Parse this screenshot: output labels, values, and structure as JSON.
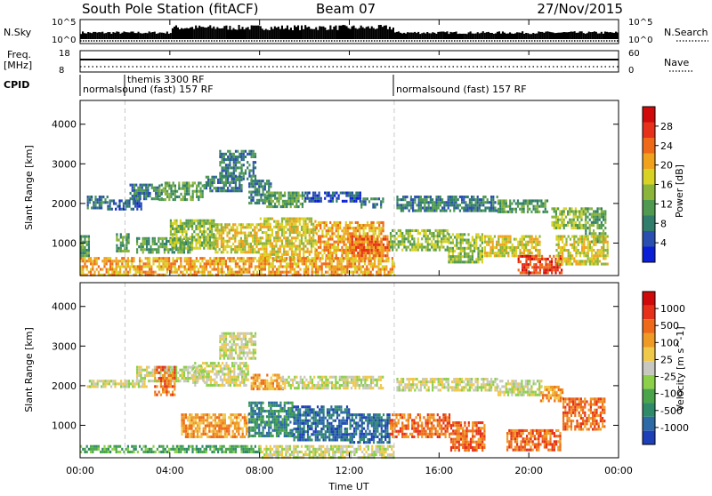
{
  "header": {
    "station": "South Pole Station (fitACF)",
    "beam": "Beam 07",
    "date": "27/Nov/2015"
  },
  "top_panels": {
    "nsky_label": "N.Sky",
    "nsky_ticks": [
      "10^5",
      "10^0"
    ],
    "nsearch_label": "N.Search",
    "nsearch_ticks": [
      "10^5",
      "10^0"
    ],
    "freq_label": "Freq.",
    "freq_unit": "[MHz]",
    "freq_ticks": [
      "18",
      "8"
    ],
    "nave_label": "Nave",
    "nave_ticks": [
      "60",
      "0"
    ],
    "cpid_label": "CPID",
    "cpid_segments": [
      {
        "label": "normalsound (fast) 157 RF",
        "start_hour": 0,
        "end_hour": 14
      },
      {
        "label": "themis 3300 RF",
        "start_hour": 2,
        "end_hour": 2
      },
      {
        "label": "normalsound (fast) 157 RF",
        "start_hour": 14,
        "end_hour": 24
      }
    ]
  },
  "chart_data": [
    {
      "type": "heatmap",
      "panel": "power",
      "ylabel": "Slant Range [km]",
      "yticks": [
        1000,
        2000,
        3000,
        4000
      ],
      "ylim": [
        180,
        4600
      ],
      "xlim_hours": [
        0,
        24
      ],
      "colorbar": {
        "label": "Power [dB]",
        "ticks": [
          "4",
          "8",
          "12",
          "16",
          "20",
          "24",
          "28"
        ],
        "colors": [
          "#0b1fd6",
          "#2a4fb0",
          "#2f7d6a",
          "#4f9a50",
          "#8ab43a",
          "#d8d224",
          "#f0a21c",
          "#ee6a18",
          "#e6301a",
          "#d00a0a"
        ]
      },
      "regions": [
        {
          "x0": 0.3,
          "x1": 1.2,
          "y0": 1900,
          "y1": 2200,
          "level": 2
        },
        {
          "x0": 1.2,
          "x1": 2.7,
          "y0": 1850,
          "y1": 2100,
          "level": 1
        },
        {
          "x0": 2.2,
          "x1": 3.6,
          "y0": 2150,
          "y1": 2500,
          "level": 2
        },
        {
          "x0": 3.5,
          "x1": 5.5,
          "y0": 2100,
          "y1": 2550,
          "level": 3
        },
        {
          "x0": 5.5,
          "x1": 7.2,
          "y0": 2300,
          "y1": 2700,
          "level": 2
        },
        {
          "x0": 6.2,
          "x1": 7.8,
          "y0": 2600,
          "y1": 3350,
          "level": 2
        },
        {
          "x0": 7.5,
          "x1": 8.5,
          "y0": 2000,
          "y1": 2600,
          "level": 2
        },
        {
          "x0": 8.3,
          "x1": 10.0,
          "y0": 1900,
          "y1": 2300,
          "level": 3
        },
        {
          "x0": 10.0,
          "x1": 12.5,
          "y0": 2050,
          "y1": 2300,
          "level": 1
        },
        {
          "x0": 12.5,
          "x1": 13.5,
          "y0": 1900,
          "y1": 2150,
          "level": 2
        },
        {
          "x0": 14.1,
          "x1": 18.6,
          "y0": 1850,
          "y1": 2200,
          "level": 2
        },
        {
          "x0": 18.6,
          "x1": 20.8,
          "y0": 1800,
          "y1": 2100,
          "level": 3
        },
        {
          "x0": 21.0,
          "x1": 22.5,
          "y0": 1350,
          "y1": 1900,
          "level": 4
        },
        {
          "x0": 22.5,
          "x1": 23.4,
          "y0": 1000,
          "y1": 1900,
          "level": 3
        },
        {
          "x0": 0.0,
          "x1": 0.4,
          "y0": 700,
          "y1": 1200,
          "level": 3
        },
        {
          "x0": 1.6,
          "x1": 2.2,
          "y0": 800,
          "y1": 1250,
          "level": 3
        },
        {
          "x0": 2.5,
          "x1": 5.0,
          "y0": 750,
          "y1": 1150,
          "level": 3
        },
        {
          "x0": 4.0,
          "x1": 6.0,
          "y0": 900,
          "y1": 1600,
          "level": 4
        },
        {
          "x0": 6.0,
          "x1": 8.0,
          "y0": 800,
          "y1": 1500,
          "level": 5
        },
        {
          "x0": 8.0,
          "x1": 10.5,
          "y0": 550,
          "y1": 1650,
          "level": 5
        },
        {
          "x0": 10.5,
          "x1": 13.5,
          "y0": 600,
          "y1": 1550,
          "level": 6
        },
        {
          "x0": 12.0,
          "x1": 13.8,
          "y0": 650,
          "y1": 1200,
          "level": 7
        },
        {
          "x0": 13.8,
          "x1": 16.4,
          "y0": 850,
          "y1": 1350,
          "level": 4
        },
        {
          "x0": 16.4,
          "x1": 17.9,
          "y0": 500,
          "y1": 1250,
          "level": 4
        },
        {
          "x0": 18.0,
          "x1": 20.5,
          "y0": 700,
          "y1": 1200,
          "level": 5
        },
        {
          "x0": 19.5,
          "x1": 21.5,
          "y0": 280,
          "y1": 700,
          "level": 8
        },
        {
          "x0": 21.2,
          "x1": 23.5,
          "y0": 500,
          "y1": 1200,
          "level": 5
        },
        {
          "x0": 0.0,
          "x1": 14.0,
          "y0": 200,
          "y1": 650,
          "level": 6
        }
      ]
    },
    {
      "type": "heatmap",
      "panel": "velocity",
      "ylabel": "Slant Range [km]",
      "yticks": [
        1000,
        2000,
        3000,
        4000
      ],
      "ylim": [
        180,
        4600
      ],
      "xlim_hours": [
        0,
        24
      ],
      "xlabel": "Time UT",
      "xticks": [
        "00:00",
        "04:00",
        "08:00",
        "12:00",
        "16:00",
        "20:00",
        "00:00"
      ],
      "colorbar": {
        "label": "Velocity [m s^-1]",
        "ticks": [
          "1000",
          "500",
          "100",
          "25",
          "-25",
          "-100",
          "-500",
          "-1000"
        ],
        "colors": [
          "#1d3fb8",
          "#2c6aa6",
          "#2f8a6a",
          "#4aa54a",
          "#8cd04a",
          "#c8c8c0",
          "#f0c84a",
          "#ef9a24",
          "#ee6a18",
          "#e6301a",
          "#d00a0a"
        ]
      },
      "regions": [
        {
          "x0": 0.3,
          "x1": 3.0,
          "y0": 1950,
          "y1": 2150,
          "level": 5
        },
        {
          "x0": 2.5,
          "x1": 5.5,
          "y0": 2150,
          "y1": 2500,
          "level": 5
        },
        {
          "x0": 3.3,
          "x1": 4.2,
          "y0": 1800,
          "y1": 2500,
          "level": 8
        },
        {
          "x0": 5.0,
          "x1": 7.5,
          "y0": 2000,
          "y1": 2600,
          "level": 5
        },
        {
          "x0": 6.2,
          "x1": 7.8,
          "y0": 2700,
          "y1": 3350,
          "level": 5
        },
        {
          "x0": 7.6,
          "x1": 9.0,
          "y0": 1950,
          "y1": 2300,
          "level": 7
        },
        {
          "x0": 9.0,
          "x1": 13.5,
          "y0": 1950,
          "y1": 2250,
          "level": 5
        },
        {
          "x0": 14.1,
          "x1": 18.6,
          "y0": 1900,
          "y1": 2200,
          "level": 5
        },
        {
          "x0": 18.6,
          "x1": 20.6,
          "y0": 1800,
          "y1": 2150,
          "level": 5
        },
        {
          "x0": 20.5,
          "x1": 21.5,
          "y0": 1600,
          "y1": 2000,
          "level": 7
        },
        {
          "x0": 21.5,
          "x1": 23.4,
          "y0": 900,
          "y1": 1700,
          "level": 8
        },
        {
          "x0": 19.0,
          "x1": 21.4,
          "y0": 350,
          "y1": 900,
          "level": 8
        },
        {
          "x0": 4.5,
          "x1": 7.5,
          "y0": 700,
          "y1": 1300,
          "level": 7
        },
        {
          "x0": 7.5,
          "x1": 9.5,
          "y0": 700,
          "y1": 1600,
          "level": 2
        },
        {
          "x0": 9.5,
          "x1": 12.0,
          "y0": 600,
          "y1": 1500,
          "level": 1
        },
        {
          "x0": 12.0,
          "x1": 13.8,
          "y0": 600,
          "y1": 1300,
          "level": 1
        },
        {
          "x0": 13.8,
          "x1": 16.5,
          "y0": 700,
          "y1": 1300,
          "level": 8
        },
        {
          "x0": 16.5,
          "x1": 18.0,
          "y0": 400,
          "y1": 1100,
          "level": 8
        },
        {
          "x0": 0.0,
          "x1": 8.0,
          "y0": 300,
          "y1": 500,
          "level": 3
        },
        {
          "x0": 8.0,
          "x1": 14.0,
          "y0": 220,
          "y1": 500,
          "level": 5
        }
      ]
    }
  ]
}
